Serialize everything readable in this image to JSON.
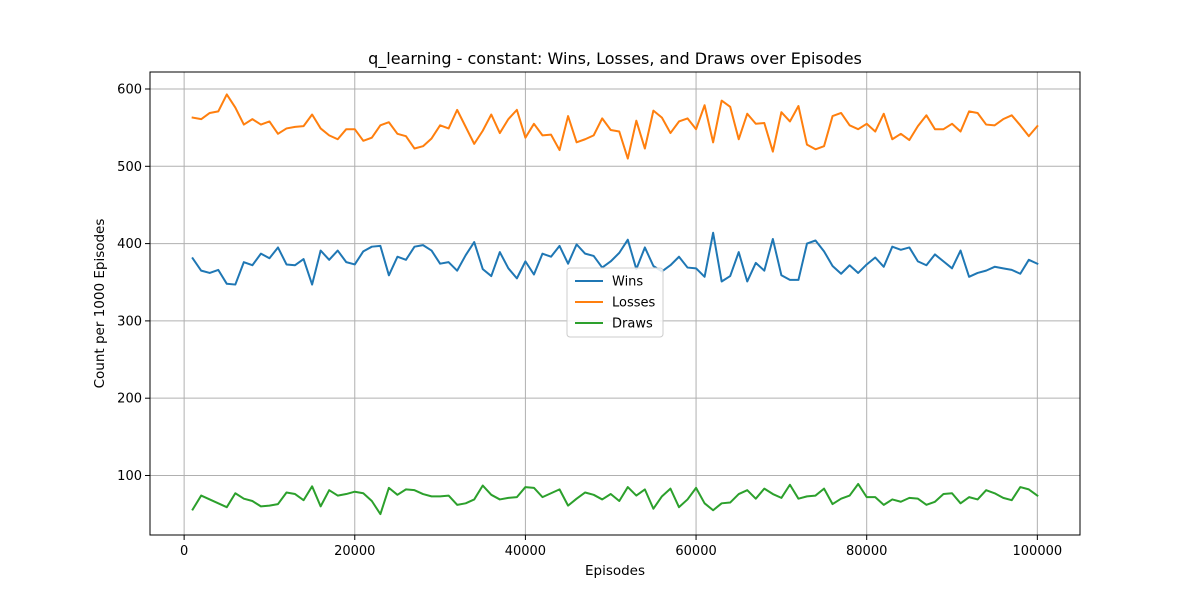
{
  "chart_data": {
    "type": "line",
    "title": "q_learning - constant: Wins, Losses, and Draws over Episodes",
    "xlabel": "Episodes",
    "ylabel": "Count per 1000 Episodes",
    "xlim": [
      -4000,
      105000
    ],
    "ylim": [
      23,
      622
    ],
    "xticks": [
      0,
      20000,
      40000,
      60000,
      80000,
      100000
    ],
    "xtick_labels": [
      "0",
      "20000",
      "40000",
      "60000",
      "80000",
      "100000"
    ],
    "yticks": [
      100,
      200,
      300,
      400,
      500,
      600
    ],
    "ytick_labels": [
      "100",
      "200",
      "300",
      "400",
      "500",
      "600"
    ],
    "grid": true,
    "legend_position": "center",
    "x_start": 1000,
    "x_step": 1000,
    "series": [
      {
        "name": "Wins",
        "color": "#1f77b4",
        "values": [
          381,
          365,
          362,
          366,
          348,
          347,
          376,
          372,
          387,
          381,
          395,
          373,
          372,
          380,
          347,
          391,
          379,
          391,
          376,
          373,
          390,
          396,
          397,
          359,
          383,
          379,
          396,
          398,
          391,
          374,
          376,
          365,
          385,
          402,
          367,
          358,
          389,
          368,
          355,
          377,
          360,
          387,
          383,
          397,
          374,
          399,
          387,
          384,
          369,
          377,
          388,
          405,
          367,
          395,
          371,
          364,
          372,
          383,
          369,
          368,
          357,
          414,
          351,
          358,
          389,
          351,
          375,
          365,
          406,
          359,
          353,
          353,
          400,
          404,
          390,
          371,
          361,
          372,
          362,
          373,
          382,
          370,
          396,
          392,
          395,
          377,
          372,
          386,
          377,
          368,
          391,
          357,
          362,
          365,
          370,
          368,
          366,
          361,
          379,
          374
        ]
      },
      {
        "name": "Losses",
        "color": "#ff7f0e",
        "values": [
          563,
          561,
          569,
          571,
          593,
          576,
          554,
          561,
          554,
          558,
          542,
          549,
          551,
          552,
          567,
          549,
          540,
          535,
          548,
          548,
          533,
          537,
          553,
          557,
          542,
          539,
          523,
          526,
          536,
          553,
          549,
          573,
          551,
          529,
          546,
          567,
          543,
          561,
          573,
          537,
          555,
          540,
          541,
          521,
          565,
          531,
          535,
          540,
          562,
          547,
          545,
          510,
          559,
          523,
          572,
          563,
          543,
          558,
          562,
          548,
          579,
          531,
          585,
          577,
          535,
          568,
          555,
          556,
          519,
          570,
          558,
          578,
          528,
          522,
          526,
          565,
          569,
          553,
          548,
          555,
          545,
          568,
          535,
          542,
          534,
          552,
          566,
          548,
          548,
          555,
          545,
          571,
          569,
          554,
          553,
          561,
          566,
          553,
          539,
          552
        ]
      },
      {
        "name": "Draws",
        "color": "#2ca02c",
        "values": [
          56,
          74,
          69,
          64,
          59,
          77,
          70,
          67,
          60,
          61,
          63,
          78,
          76,
          68,
          86,
          60,
          81,
          74,
          76,
          79,
          77,
          67,
          50,
          84,
          75,
          82,
          81,
          76,
          73,
          73,
          74,
          62,
          64,
          69,
          87,
          75,
          69,
          71,
          72,
          85,
          84,
          72,
          77,
          82,
          61,
          70,
          78,
          75,
          69,
          76,
          67,
          85,
          74,
          82,
          57,
          73,
          83,
          59,
          69,
          84,
          64,
          55,
          64,
          65,
          76,
          81,
          70,
          83,
          76,
          71,
          88,
          70,
          73,
          74,
          83,
          63,
          70,
          74,
          89,
          72,
          72,
          62,
          69,
          66,
          71,
          70,
          62,
          66,
          76,
          77,
          64,
          72,
          69,
          81,
          77,
          71,
          68,
          85,
          82,
          74
        ]
      }
    ]
  }
}
